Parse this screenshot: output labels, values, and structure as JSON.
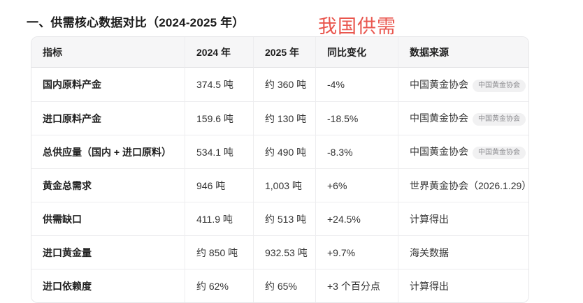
{
  "page": {
    "title": "一、供需核心数据对比（2024-2025 年）",
    "annotation": "我国供需"
  },
  "colors": {
    "annotation_red": "#e9564e",
    "header_bg": "#f6f6f7",
    "table_border": "#e7e7e9",
    "badge_bg": "#f1f1f2",
    "badge_text": "#8e8e92"
  },
  "table": {
    "headers": {
      "indicator": "指标",
      "y2024": "2024 年",
      "y2025": "2025 年",
      "yoy": "同比变化",
      "source": "数据来源"
    },
    "rows": [
      {
        "indicator": "国内原料产金",
        "y2024": "374.5 吨",
        "y2025": "约 360 吨",
        "yoy": "-4%",
        "source": "中国黄金协会",
        "source_badge": "中国黄金协会"
      },
      {
        "indicator": "进口原料产金",
        "y2024": "159.6 吨",
        "y2025": "约 130 吨",
        "yoy": "-18.5%",
        "source": "中国黄金协会",
        "source_badge": "中国黄金协会"
      },
      {
        "indicator": "总供应量（国内 + 进口原料）",
        "y2024": "534.1 吨",
        "y2025": "约 490 吨",
        "yoy": "-8.3%",
        "source": "中国黄金协会",
        "source_badge": "中国黄金协会"
      },
      {
        "indicator": "黄金总需求",
        "y2024": "946 吨",
        "y2025": "1,003 吨",
        "yoy": "+6%",
        "source": "世界黄金协会（2026.1.29）"
      },
      {
        "indicator": "供需缺口",
        "y2024": "411.9 吨",
        "y2025": "约 513 吨",
        "yoy": "+24.5%",
        "source": "计算得出"
      },
      {
        "indicator": "进口黄金量",
        "y2024": "约 850 吨",
        "y2025": "932.53 吨",
        "yoy": "+9.7%",
        "source": "海关数据"
      },
      {
        "indicator": "进口依赖度",
        "y2024": "约 62%",
        "y2025": "约 65%",
        "yoy": "+3 个百分点",
        "source": "计算得出"
      }
    ]
  }
}
